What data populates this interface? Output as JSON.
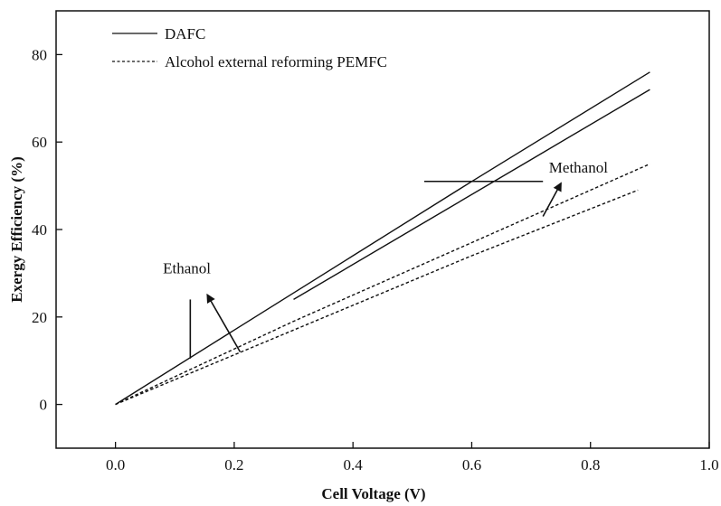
{
  "chart_data": {
    "type": "line",
    "title": "",
    "xlabel": "Cell Voltage (V)",
    "ylabel": "Exergy Efficiency (%)",
    "xlim": [
      -0.1,
      1.0
    ],
    "ylim": [
      -10,
      90
    ],
    "xticks": [
      0.0,
      0.2,
      0.4,
      0.6,
      0.8,
      1.0
    ],
    "xtick_labels": [
      "0.0",
      "0.2",
      "0.4",
      "0.6",
      "0.8",
      "1.0"
    ],
    "yticks": [
      0,
      20,
      40,
      60,
      80
    ],
    "ytick_labels": [
      "0",
      "20",
      "40",
      "60",
      "80"
    ],
    "grid": false,
    "legend_position": "top-left",
    "legend": [
      {
        "label": "DAFC",
        "style": "solid"
      },
      {
        "label": "Alcohol external reforming PEMFC",
        "style": "dashed"
      }
    ],
    "series": [
      {
        "x": [
          0.0,
          0.2,
          0.4,
          0.6,
          0.9
        ],
        "y": [
          0,
          17,
          34,
          51,
          76
        ],
        "style": "solid"
      },
      {
        "x": [
          0.3,
          0.5,
          0.7,
          0.9
        ],
        "y": [
          24,
          40,
          56,
          72
        ],
        "style": "solid"
      },
      {
        "x": [
          0.0,
          0.3,
          0.6,
          0.9
        ],
        "y": [
          0,
          19,
          37,
          55
        ],
        "style": "dashed"
      },
      {
        "x": [
          0.0,
          0.3,
          0.6,
          0.88
        ],
        "y": [
          0,
          17,
          34,
          49
        ],
        "style": "dashed"
      }
    ],
    "annotations": [
      {
        "text": "Ethanol",
        "x": 0.08,
        "y": 30
      },
      {
        "text": "Methanol",
        "x": 0.73,
        "y": 53
      }
    ],
    "arrows": [
      {
        "name": "ethanol-vertical-marker",
        "from": [
          0.126,
          10.5
        ],
        "to": [
          0.126,
          24
        ],
        "head": false
      },
      {
        "name": "ethanol-arrow",
        "from": [
          0.21,
          12
        ],
        "to": [
          0.155,
          25
        ],
        "head": true
      },
      {
        "name": "methanol-horizontal-marker",
        "from": [
          0.52,
          51
        ],
        "to": [
          0.72,
          51
        ],
        "head": false
      },
      {
        "name": "methanol-arrow",
        "from": [
          0.72,
          43
        ],
        "to": [
          0.75,
          50.5
        ],
        "head": true
      }
    ],
    "colors": {
      "line": "#111111",
      "axis": "#111111",
      "background": "#ffffff"
    }
  }
}
